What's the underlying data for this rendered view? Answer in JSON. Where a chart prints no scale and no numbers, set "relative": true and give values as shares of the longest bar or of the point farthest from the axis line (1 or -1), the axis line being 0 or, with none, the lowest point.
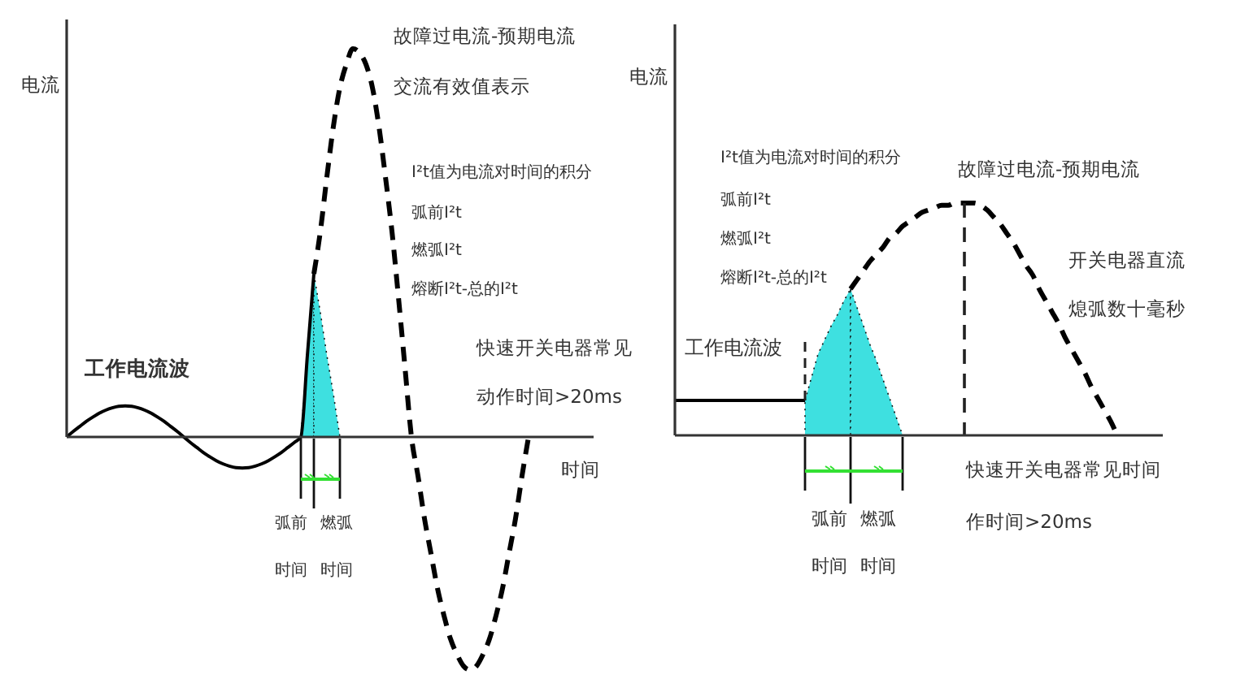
{
  "chart_data": [
    {
      "type": "line",
      "ylabel": "电流",
      "xlabel": "时间",
      "relative": true,
      "categories": [
        null,
        null,
        null,
        null,
        null,
        null,
        null,
        null,
        null,
        null,
        null,
        null,
        null,
        null,
        null,
        null,
        null,
        null,
        null,
        null,
        null,
        null,
        null,
        null,
        null,
        null,
        null,
        null,
        null,
        null,
        null,
        null,
        null,
        null,
        null,
        null,
        null,
        null,
        null,
        null,
        null,
        null,
        null,
        null,
        null,
        null,
        null,
        null,
        null,
        null,
        null,
        null,
        null,
        null,
        null,
        null,
        null,
        null,
        null,
        null,
        null,
        null,
        null,
        null,
        null,
        null,
        null,
        null,
        null,
        null,
        null,
        null,
        null,
        null,
        null,
        null,
        null,
        null,
        null,
        null,
        null,
        null
      ],
      "series": [
        {
          "color": "#000000",
          "line_style": "solid",
          "values": [
            0,
            0.014,
            0.027,
            0.04,
            0.051,
            0.061,
            0.069,
            0.075,
            0.079,
            0.08,
            0.079,
            0.075,
            0.069,
            0.061,
            0.051,
            0.04,
            0.027,
            0.014,
            0,
            -0.014,
            -0.027,
            -0.04,
            -0.051,
            -0.061,
            -0.069,
            -0.075,
            -0.079,
            -0.08,
            -0.079,
            -0.075,
            -0.069,
            -0.061,
            -0.051,
            -0.04,
            -0.027,
            -0.014,
            0,
            0.21,
            0.42,
            null,
            null,
            null,
            null,
            null,
            null,
            null,
            null,
            null,
            null,
            null,
            null,
            null,
            null,
            null,
            null,
            null,
            null,
            null,
            null,
            null,
            null,
            null,
            null,
            null,
            null,
            null,
            null,
            null,
            null,
            null,
            null,
            null,
            null,
            null,
            null,
            null,
            null,
            null,
            null,
            null,
            null,
            null
          ]
        },
        {
          "color": "#000000",
          "line_style": "dashed",
          "values": [
            null,
            null,
            null,
            null,
            null,
            null,
            null,
            null,
            null,
            null,
            null,
            null,
            null,
            null,
            null,
            null,
            null,
            null,
            null,
            null,
            null,
            null,
            null,
            null,
            null,
            null,
            null,
            null,
            null,
            null,
            null,
            null,
            null,
            null,
            null,
            null,
            null,
            null,
            0.42,
            0.53,
            0.67,
            0.8,
            0.9,
            0.96,
            1,
            0.99,
            0.96,
            0.9,
            0.8,
            0.67,
            0.53,
            0.36,
            0.18,
            0,
            -0.1,
            -0.21,
            -0.3,
            -0.39,
            -0.46,
            -0.52,
            -0.56,
            -0.59,
            -0.6,
            -0.59,
            -0.56,
            -0.52,
            -0.46,
            -0.39,
            -0.3,
            -0.21,
            -0.1,
            0,
            null,
            null,
            null,
            null,
            null,
            null,
            null,
            null,
            null,
            null
          ]
        },
        {
          "type": "area",
          "color": "#3ee0e0",
          "line_style": "dotted",
          "values": [
            null,
            null,
            null,
            null,
            null,
            null,
            null,
            null,
            null,
            null,
            null,
            null,
            null,
            null,
            null,
            null,
            null,
            null,
            null,
            null,
            null,
            null,
            null,
            null,
            null,
            null,
            null,
            null,
            null,
            null,
            null,
            null,
            null,
            null,
            null,
            null,
            0,
            0.21,
            0.42,
            null,
            null,
            null,
            null,
            null,
            null,
            null,
            null,
            null,
            null,
            null,
            null,
            null,
            null,
            null,
            null,
            null,
            null,
            null,
            null,
            null,
            null,
            null,
            null,
            null,
            null,
            null,
            null,
            null,
            null,
            null,
            null,
            null,
            null,
            null,
            null,
            null,
            null,
            null,
            null,
            null,
            null,
            null
          ]
        },
        {
          "type": "area",
          "color": "#3ee0e0",
          "line_style": "dotted",
          "values": [
            null,
            null,
            null,
            null,
            null,
            null,
            null,
            null,
            null,
            null,
            null,
            null,
            null,
            null,
            null,
            null,
            null,
            null,
            null,
            null,
            null,
            null,
            null,
            null,
            null,
            null,
            null,
            null,
            null,
            null,
            null,
            null,
            null,
            null,
            null,
            null,
            null,
            null,
            0.42,
            0.32,
            0.21,
            0.11,
            0,
            null,
            null,
            null,
            null,
            null,
            null,
            null,
            null,
            null,
            null,
            null,
            null,
            null,
            null,
            null,
            null,
            null,
            null,
            null,
            null,
            null,
            null,
            null,
            null,
            null,
            null,
            null,
            null,
            null,
            null,
            null,
            null,
            null,
            null,
            null,
            null,
            null,
            null,
            null
          ]
        }
      ],
      "annotations": [
        "故障过电流-预期电流",
        "交流有效值表示",
        "I²t值为电流对时间的积分",
        "弧前I²t",
        "燃弧I²t",
        "熔断I²t-总的I²t",
        "工作电流波",
        "快速开关电器常见",
        "动作时间>20ms",
        "弧前",
        "燃弧",
        "时间",
        "时间"
      ]
    },
    {
      "type": "line",
      "ylabel": "电流",
      "relative": true,
      "categories": [
        null,
        null,
        null,
        null,
        null,
        null,
        null,
        null,
        null,
        null,
        null,
        null,
        null,
        null,
        null,
        null,
        null,
        null,
        null,
        null,
        null,
        null,
        null,
        null,
        null,
        null,
        null,
        null,
        null,
        null,
        null,
        null,
        null,
        null,
        null,
        null,
        null,
        null,
        null,
        null,
        null,
        null,
        null,
        null,
        null,
        null,
        null,
        null,
        null,
        null,
        null,
        null,
        null,
        null,
        null,
        null,
        null,
        null,
        null,
        null,
        null,
        null,
        null,
        null,
        null,
        null,
        null,
        null,
        null,
        null,
        null,
        null,
        null,
        null,
        null,
        null
      ],
      "series": [
        {
          "color": "#000000",
          "line_style": "solid",
          "values": [
            0.15,
            0.15,
            0.15,
            0.15,
            0.15,
            0.15,
            0.15,
            0.15,
            0.15,
            0.15,
            0.15,
            0.15,
            0.15,
            0.15,
            0.15,
            0.15,
            0.15,
            0.15,
            0.15,
            0.15,
            0.15,
            null,
            null,
            null,
            null,
            null,
            null,
            null,
            null,
            null,
            null,
            null,
            null,
            null,
            null,
            null,
            null,
            null,
            null,
            null,
            null,
            null,
            null,
            null,
            null,
            null,
            null,
            null,
            null,
            null,
            null,
            null,
            null,
            null,
            null,
            null,
            null,
            null,
            null,
            null,
            null,
            null,
            null,
            null,
            null,
            null,
            null,
            null,
            null,
            null,
            null,
            null,
            null,
            null,
            null,
            null
          ]
        },
        {
          "color": "#000000",
          "line_style": "dashed",
          "values": [
            null,
            null,
            null,
            null,
            null,
            null,
            null,
            null,
            null,
            null,
            null,
            null,
            null,
            null,
            null,
            null,
            null,
            null,
            null,
            null,
            null,
            null,
            null,
            null,
            null,
            null,
            null,
            0.63,
            0.67,
            0.71,
            0.75,
            0.78,
            0.81,
            0.85,
            0.87,
            0.9,
            0.92,
            0.94,
            0.96,
            0.97,
            0.98,
            0.99,
            0.99,
            1,
            1,
            1,
            1,
            0.99,
            0.97,
            0.94,
            0.91,
            0.87,
            0.83,
            0.78,
            0.73,
            0.69,
            0.63,
            0.58,
            0.53,
            0.48,
            0.42,
            0.37,
            0.32,
            0.27,
            0.21,
            0.16,
            0.11,
            0.06,
            0,
            null,
            null,
            null,
            null,
            null,
            null,
            null
          ]
        },
        {
          "type": "area",
          "color": "#3ee0e0",
          "line_style": "dotted",
          "values": [
            null,
            null,
            null,
            null,
            null,
            null,
            null,
            null,
            null,
            null,
            null,
            null,
            null,
            null,
            null,
            null,
            null,
            null,
            null,
            null,
            0.15,
            0.25,
            0.35,
            0.41,
            0.47,
            0.52,
            0.58,
            0.63,
            null,
            null,
            null,
            null,
            null,
            null,
            null,
            null,
            null,
            null,
            null,
            null,
            null,
            null,
            null,
            null,
            null,
            null,
            null,
            null,
            null,
            null,
            null,
            null,
            null,
            null,
            null,
            null,
            null,
            null,
            null,
            null,
            null,
            null,
            null,
            null,
            null,
            null,
            null,
            null,
            null,
            null,
            null,
            null,
            null,
            null,
            null,
            null
          ]
        },
        {
          "type": "area",
          "color": "#3ee0e0",
          "line_style": "dotted",
          "values": [
            null,
            null,
            null,
            null,
            null,
            null,
            null,
            null,
            null,
            null,
            null,
            null,
            null,
            null,
            null,
            null,
            null,
            null,
            null,
            null,
            null,
            null,
            null,
            null,
            null,
            null,
            null,
            0.63,
            0.55,
            0.47,
            0.39,
            0.32,
            0.24,
            0.16,
            0.08,
            0,
            null,
            null,
            null,
            null,
            null,
            null,
            null,
            null,
            null,
            null,
            null,
            null,
            null,
            null,
            null,
            null,
            null,
            null,
            null,
            null,
            null,
            null,
            null,
            null,
            null,
            null,
            null,
            null,
            null,
            null,
            null,
            null,
            null,
            null,
            null,
            null,
            null,
            null,
            null,
            null
          ]
        }
      ],
      "annotations": [
        "I²t值为电流对时间的积分",
        "弧前I²t",
        "燃弧I²t",
        "熔断I²t-总的I²t",
        "故障过电流-预期电流",
        "开关电器直流",
        "熄弧数十毫秒",
        "工作电流波",
        "快速开关电器常见时间",
        "作时间>20ms",
        "弧前",
        "燃弧",
        "时间",
        "时间"
      ]
    }
  ]
}
